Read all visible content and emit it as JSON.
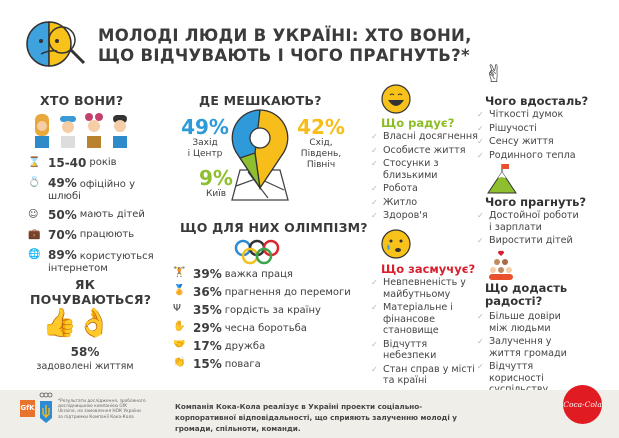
{
  "title": {
    "line1": "МОЛОДІ ЛЮДИ В УКРАЇНІ: ХТО ВОНИ,",
    "line2": "ЩО ВІДЧУВАЮТЬ І ЧОГО ПРАГНУТЬ?*"
  },
  "who": {
    "heading": "ХТО ВОНИ?",
    "stats": [
      {
        "value": "15-40",
        "text": "років"
      },
      {
        "value": "49%",
        "text": "офіційно у шлюбі"
      },
      {
        "value": "50%",
        "text": "мають дітей"
      },
      {
        "value": "70%",
        "text": "працюють"
      },
      {
        "value": "89%",
        "text": "користуються інтернетом"
      }
    ]
  },
  "feel": {
    "heading1": "ЯК",
    "heading2": "ПОЧУВАЮТЬСЯ?",
    "value": "58%",
    "text": "задоволені життям"
  },
  "where": {
    "heading": "ДЕ МЕШКАЮТЬ?",
    "west": {
      "value": "49%",
      "l1": "Захід",
      "l2": "і Центр"
    },
    "east": {
      "value": "42%",
      "l1": "Схід,",
      "l2": "Південь,",
      "l3": "Північ"
    },
    "kyiv": {
      "value": "9%",
      "l1": "Київ"
    },
    "colors": {
      "west": "#2e9ad9",
      "east": "#f7bd1a",
      "kyiv": "#8dbf2e"
    }
  },
  "olympism": {
    "heading": "ЩО ДЛЯ НИХ ОЛІМПІЗМ?",
    "items": [
      {
        "value": "39%",
        "text": "важка праця"
      },
      {
        "value": "36%",
        "text": "прагнення до перемоги"
      },
      {
        "value": "35%",
        "text": "гордість за країну"
      },
      {
        "value": "29%",
        "text": "чесна боротьба"
      },
      {
        "value": "17%",
        "text": "дружба"
      },
      {
        "value": "15%",
        "text": "повага"
      }
    ]
  },
  "joy": {
    "heading": "Що радує?",
    "items": [
      "Власні досягнення",
      "Особисте життя",
      "Стосунки з близькими",
      "Робота",
      "Житло",
      "Здоров'я"
    ]
  },
  "sad": {
    "heading": "Що засмучує?",
    "items": [
      "Невпевненість у майбутньому",
      "Матеріальне і фінансове становище",
      "Відчуття небезпеки",
      "Стан справ у місті та країні"
    ]
  },
  "lack": {
    "heading": "Чого вдосталь?",
    "items": [
      "Чіткості думок",
      "Рішучості",
      "Сенсу життя",
      "Родинного тепла"
    ]
  },
  "aspire": {
    "heading": "Чого прагнуть?",
    "items": [
      "Достойної роботи і зарплати",
      "Виростити дітей"
    ]
  },
  "happier": {
    "heading1": "Що додасть",
    "heading2": "радості?",
    "items": [
      "Більше довіри між людьми",
      "Залучення у життя громади",
      "Відчуття корисності суспільству"
    ]
  },
  "footer": {
    "note": "*Результати дослідження, зробленого дослідницькою компанією GfK Ukraine, на замовлення НОК України за підтримки Компанії Кока-Кола",
    "text": "Компанія Кока-Кола реалізує в Україні проекти соціально-корпоративної відповідальності, що сприяють залученню молоді у громади, спільноти, команди.",
    "gfk": "GfK",
    "brand": "Coca-Cola"
  }
}
